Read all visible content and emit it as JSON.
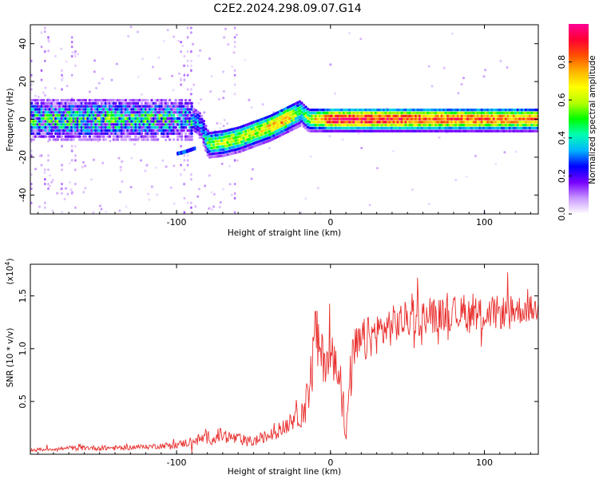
{
  "title": "C2E2.2024.298.09.07.G14",
  "chart_data": [
    {
      "type": "heatmap",
      "xlabel": "Height of straight line (km)",
      "ylabel": "Frequency (Hz)",
      "xlim": [
        -195,
        135
      ],
      "ylim": [
        -50,
        50
      ],
      "x_ticks": [
        -100,
        0,
        100
      ],
      "y_ticks": [
        -40,
        -20,
        0,
        20,
        40
      ],
      "colorbar": {
        "label": "Normalized spectral amplitude",
        "range": [
          0.0,
          1.0
        ],
        "ticks": [
          0.0,
          0.2,
          0.4,
          0.6,
          0.8
        ],
        "tick_labels": [
          "0.0",
          "0.2",
          "0.4",
          "0.6",
          "0.8"
        ],
        "colors": [
          "#ffffff",
          "#c896ff",
          "#7800ff",
          "#0000ff",
          "#00b4ff",
          "#00ffb4",
          "#00ff00",
          "#b4ff00",
          "#ffff00",
          "#ffb400",
          "#ff5000",
          "#ff0032",
          "#ff0096"
        ]
      },
      "ridge": {
        "x": [
          -195,
          -150,
          -110,
          -100,
          -90,
          -85,
          -80,
          -70,
          -60,
          -50,
          -40,
          -30,
          -25,
          -20,
          -15,
          -5,
          0,
          20,
          50,
          100,
          135
        ],
        "y": [
          0,
          0,
          0,
          0,
          0,
          -3,
          -13,
          -12,
          -10,
          -7,
          -4,
          0,
          2,
          4,
          0,
          0,
          0,
          0,
          0,
          0,
          0
        ],
        "amplitude": [
          0.35,
          0.38,
          0.36,
          0.3,
          0.32,
          0.3,
          0.5,
          0.6,
          0.6,
          0.62,
          0.7,
          0.78,
          0.6,
          0.45,
          0.6,
          0.8,
          0.92,
          0.92,
          0.88,
          0.82,
          0.78
        ]
      },
      "secondary_branch": {
        "x": [
          -100,
          -95,
          -88
        ],
        "y": [
          -19,
          -18,
          -16
        ],
        "amplitude": 0.3
      },
      "noise_regions": [
        [
          -195,
          -160
        ],
        [
          -100,
          -90
        ],
        [
          -65,
          -55
        ]
      ]
    },
    {
      "type": "line",
      "xlabel": "Height of straight line (km)",
      "ylabel": "SNR (10 * v/v)",
      "scale_label": "(x10",
      "scale_exponent": "4",
      "xlim": [
        -195,
        135
      ],
      "ylim": [
        0,
        1.8
      ],
      "x_ticks": [
        -100,
        0,
        100
      ],
      "y_ticks": [
        0.5,
        1.0,
        1.5
      ],
      "y_tick_labels": [
        "0.5",
        "1.0",
        "1.5"
      ],
      "series": [
        {
          "color": "#e8302e",
          "x": [
            -195,
            -180,
            -160,
            -140,
            -120,
            -100,
            -90,
            -80,
            -70,
            -60,
            -50,
            -40,
            -30,
            -25,
            -20,
            -15,
            -12,
            -10,
            -8,
            -5,
            0,
            5,
            8,
            10,
            12,
            15,
            20,
            30,
            40,
            50,
            60,
            70,
            80,
            90,
            100,
            110,
            120,
            130,
            135
          ],
          "y": [
            0.04,
            0.05,
            0.06,
            0.06,
            0.07,
            0.09,
            0.12,
            0.16,
            0.18,
            0.14,
            0.12,
            0.18,
            0.25,
            0.35,
            0.4,
            0.5,
            0.8,
            1.2,
            1.0,
            0.9,
            0.95,
            0.9,
            0.5,
            0.1,
            0.6,
            0.95,
            1.05,
            1.15,
            1.22,
            1.28,
            1.3,
            1.32,
            1.33,
            1.32,
            1.33,
            1.34,
            1.36,
            1.38,
            1.36
          ],
          "noise_amplitude": [
            0.02,
            0.02,
            0.03,
            0.03,
            0.03,
            0.04,
            0.06,
            0.08,
            0.09,
            0.07,
            0.06,
            0.08,
            0.1,
            0.15,
            0.2,
            0.25,
            0.35,
            0.4,
            0.35,
            0.3,
            0.28,
            0.3,
            0.3,
            0.1,
            0.3,
            0.3,
            0.28,
            0.25,
            0.24,
            0.22,
            0.22,
            0.2,
            0.2,
            0.22,
            0.22,
            0.2,
            0.18,
            0.16,
            0.15
          ]
        }
      ]
    }
  ]
}
